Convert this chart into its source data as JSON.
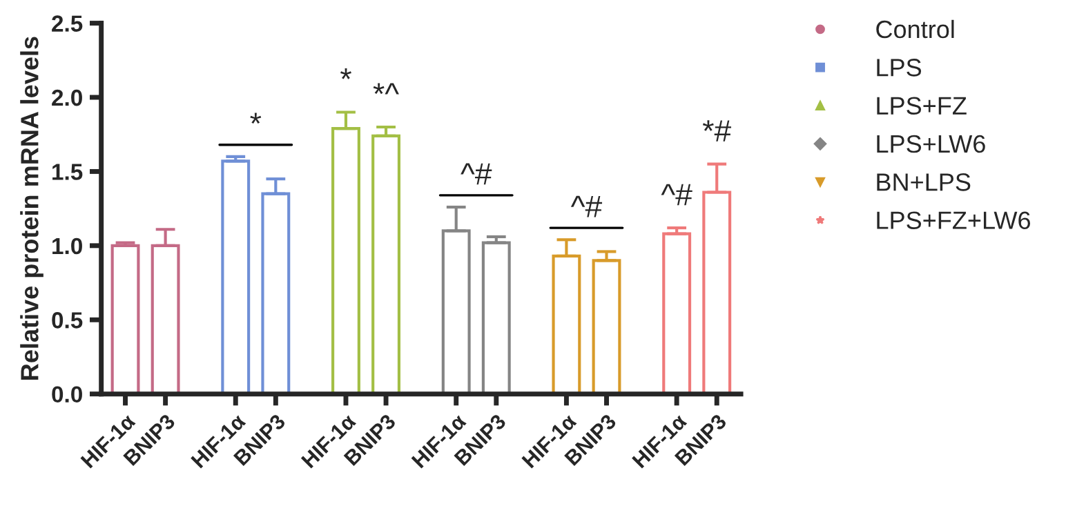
{
  "chart_data": {
    "type": "bar",
    "ylabel": "Relative protein mRNA levels",
    "categories": [
      "HIF-1α",
      "BNIP3",
      "HIF-1α",
      "BNIP3",
      "HIF-1α",
      "BNIP3",
      "HIF-1α",
      "BNIP3",
      "HIF-1α",
      "BNIP3",
      "HIF-1α",
      "BNIP3"
    ],
    "series": [
      {
        "name": "Control",
        "color": "#c46a86",
        "marker": "circle",
        "values": [
          1.0,
          1.0,
          null,
          null,
          null,
          null,
          null,
          null,
          null,
          null,
          null,
          null
        ],
        "errors": [
          0.02,
          0.11,
          null,
          null,
          null,
          null,
          null,
          null,
          null,
          null,
          null,
          null
        ]
      },
      {
        "name": "LPS",
        "color": "#6f8fd6",
        "marker": "square",
        "values": [
          null,
          null,
          1.57,
          1.35,
          null,
          null,
          null,
          null,
          null,
          null,
          null,
          null
        ],
        "errors": [
          null,
          null,
          0.03,
          0.1,
          null,
          null,
          null,
          null,
          null,
          null,
          null,
          null
        ]
      },
      {
        "name": "LPS+FZ",
        "color": "#a3bf45",
        "marker": "triangle",
        "values": [
          null,
          null,
          null,
          null,
          1.79,
          1.74,
          null,
          null,
          null,
          null,
          null,
          null
        ],
        "errors": [
          null,
          null,
          null,
          null,
          0.11,
          0.06,
          null,
          null,
          null,
          null,
          null,
          null
        ]
      },
      {
        "name": "LPS+LW6",
        "color": "#858585",
        "marker": "diamond",
        "values": [
          null,
          null,
          null,
          null,
          null,
          null,
          1.1,
          1.02,
          null,
          null,
          null,
          null
        ],
        "errors": [
          null,
          null,
          null,
          null,
          null,
          null,
          0.16,
          0.04,
          null,
          null,
          null,
          null
        ]
      },
      {
        "name": "BN+LPS",
        "color": "#d89b2a",
        "marker": "triangle_down",
        "values": [
          null,
          null,
          null,
          null,
          null,
          null,
          null,
          null,
          0.93,
          0.9,
          null,
          null
        ],
        "errors": [
          null,
          null,
          null,
          null,
          null,
          null,
          null,
          null,
          0.11,
          0.06,
          null,
          null
        ]
      },
      {
        "name": "LPS+FZ+LW6",
        "color": "#ef7a7a",
        "marker": "star",
        "values": [
          null,
          null,
          null,
          null,
          null,
          null,
          null,
          null,
          null,
          null,
          1.08,
          1.36
        ],
        "errors": [
          null,
          null,
          null,
          null,
          null,
          null,
          null,
          null,
          null,
          null,
          0.04,
          0.19
        ]
      }
    ],
    "ylim": [
      0,
      2.5
    ],
    "yticks": [
      {
        "value": 0,
        "label": "0.0"
      },
      {
        "value": 0.5,
        "label": "0.5"
      },
      {
        "value": 1,
        "label": "1.0"
      },
      {
        "value": 1.5,
        "label": "1.5"
      },
      {
        "value": 2,
        "label": "2.0"
      },
      {
        "value": 2.5,
        "label": "2.5"
      }
    ],
    "annotations": [
      "*",
      "*",
      "*^",
      "^#",
      "^#",
      "^#",
      "*#"
    ],
    "legend": "right",
    "grid": false
  }
}
